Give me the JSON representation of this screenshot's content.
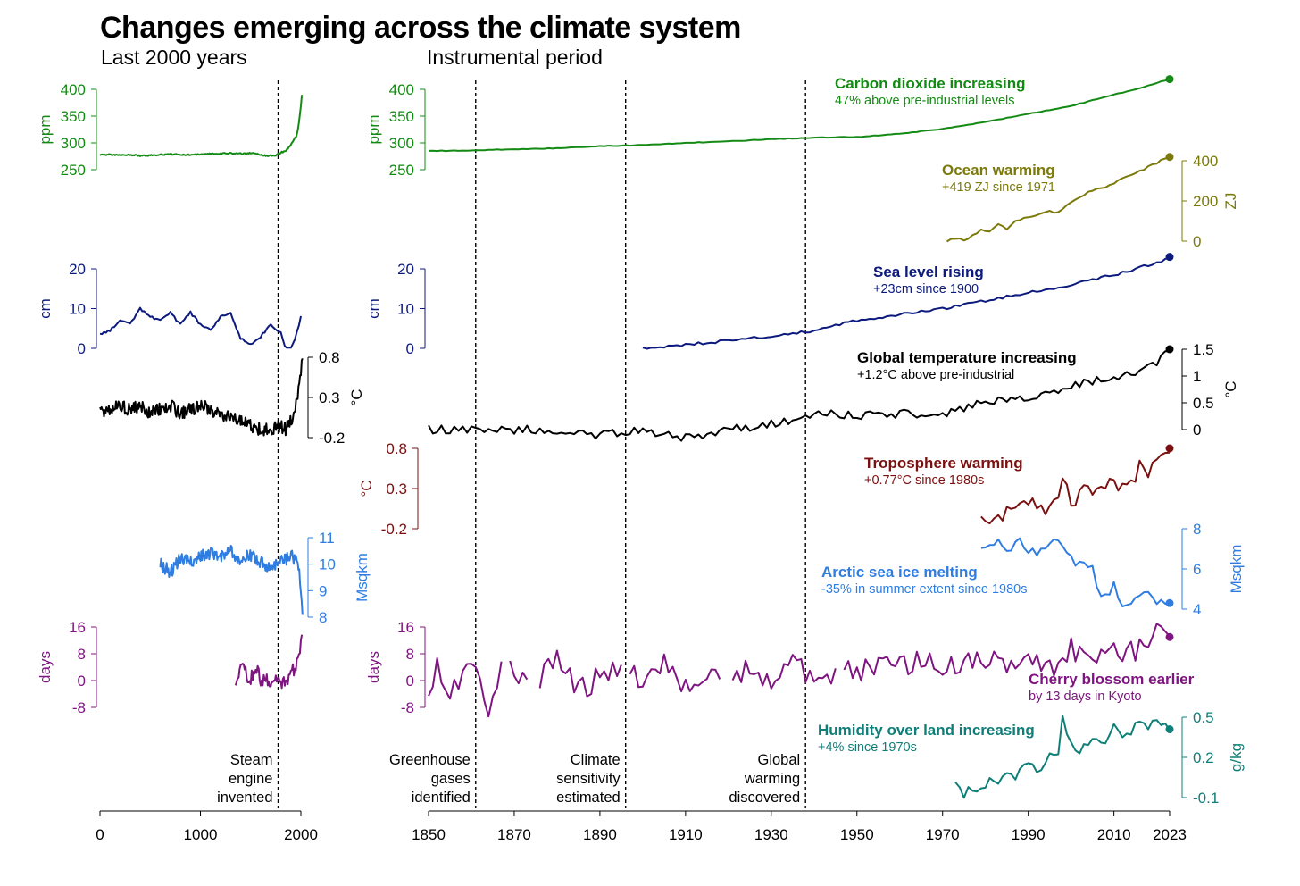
{
  "title": "Changes emerging across the climate system",
  "subtitle_left": "Last 2000 years",
  "subtitle_right": "Instrumental period",
  "colors": {
    "co2": "#138a13",
    "ocean": "#7b7a0a",
    "sea": "#0c1a7e",
    "temp": "#000000",
    "tropo": "#7a1010",
    "ice": "#2f7de0",
    "cherry": "#7f1580",
    "humid": "#0e7f78"
  },
  "events": [
    {
      "year": 1861,
      "lines": [
        "Greenhouse",
        "gases",
        "identified"
      ]
    },
    {
      "year": 1896,
      "lines": [
        "Climate",
        "sensitivity",
        "estimated"
      ]
    },
    {
      "year": 1938,
      "lines": [
        "Global",
        "warming",
        "discovered"
      ]
    }
  ],
  "steam_event": {
    "year": 1769,
    "lines": [
      "Steam",
      "engine",
      "invented"
    ]
  },
  "annotations": {
    "co2": {
      "title": "Carbon dioxide increasing",
      "sub": "47% above pre-industrial levels"
    },
    "ocean": {
      "title": "Ocean warming",
      "sub": "+419 ZJ since 1971"
    },
    "sea": {
      "title": "Sea level rising",
      "sub": "+23cm since 1900"
    },
    "temp": {
      "title": "Global temperature increasing",
      "sub": "+1.2°C above pre-industrial"
    },
    "tropo": {
      "title": "Troposphere warming",
      "sub": "+0.77°C since 1980s"
    },
    "ice": {
      "title": "Arctic sea ice melting",
      "sub": "-35% in summer extent since 1980s"
    },
    "cherry": {
      "title": "Cherry blossom earlier",
      "sub": "by 13 days in Kyoto"
    },
    "humid": {
      "title": "Humidity over land increasing",
      "sub": "+4% since 1970s"
    }
  },
  "axes_text": {
    "left_x": {
      "ticks": [
        0,
        1000,
        2000
      ],
      "labels": [
        "0",
        "1000",
        "2000"
      ]
    },
    "right_x": {
      "ticks": [
        1850,
        1870,
        1890,
        1910,
        1930,
        1950,
        1970,
        1990,
        2010,
        2023
      ],
      "labels": [
        "1850",
        "1870",
        "1890",
        "1910",
        "1930",
        "1950",
        "1970",
        "1990",
        "2010",
        "2023"
      ]
    }
  },
  "chart_data": [
    {
      "type": "line",
      "title": "Carbon dioxide increasing",
      "ylabel": "ppm",
      "ylim": [
        250,
        400
      ],
      "yticks": [
        "250",
        "300",
        "350",
        "400"
      ],
      "series": [
        {
          "period": "last_2000_years",
          "x": [
            0,
            100,
            200,
            300,
            400,
            500,
            600,
            700,
            800,
            900,
            1000,
            1100,
            1200,
            1300,
            1400,
            1500,
            1600,
            1650,
            1700,
            1750,
            1800,
            1850,
            1900,
            1925,
            1950,
            1960,
            1970,
            1980,
            1990,
            2000,
            2010,
            2019
          ],
          "y": [
            278,
            278,
            277,
            278,
            276,
            277,
            278,
            279,
            278,
            278,
            279,
            280,
            280,
            281,
            280,
            281,
            278,
            276,
            277,
            277,
            282,
            285,
            296,
            305,
            311,
            316,
            325,
            338,
            354,
            369,
            389,
            410
          ]
        },
        {
          "period": "instrumental",
          "x": [
            1850,
            1860,
            1870,
            1880,
            1890,
            1900,
            1910,
            1920,
            1930,
            1940,
            1950,
            1960,
            1970,
            1980,
            1990,
            2000,
            2010,
            2015,
            2020,
            2023
          ],
          "y": [
            285,
            286,
            288,
            290,
            294,
            296,
            300,
            303,
            307,
            310,
            311,
            317,
            326,
            339,
            354,
            369,
            390,
            400,
            412,
            419
          ]
        }
      ]
    },
    {
      "type": "line",
      "title": "Ocean warming",
      "ylabel": "ZJ",
      "ylim": [
        0,
        400
      ],
      "yticks": [
        "0",
        "200",
        "400"
      ],
      "series": [
        {
          "period": "instrumental",
          "x": [
            1971,
            1973,
            1975,
            1977,
            1979,
            1981,
            1983,
            1985,
            1987,
            1989,
            1991,
            1993,
            1995,
            1997,
            1999,
            2001,
            2003,
            2005,
            2007,
            2009,
            2011,
            2013,
            2015,
            2017,
            2019,
            2021,
            2023
          ],
          "y": [
            0,
            10,
            5,
            30,
            55,
            45,
            80,
            60,
            100,
            115,
            125,
            140,
            150,
            140,
            180,
            205,
            230,
            250,
            260,
            280,
            300,
            320,
            340,
            360,
            380,
            400,
            419
          ]
        }
      ]
    },
    {
      "type": "line",
      "title": "Sea level rising",
      "ylabel": "cm",
      "ylim": [
        0,
        20
      ],
      "yticks": [
        "0",
        "10",
        "20"
      ],
      "series": [
        {
          "period": "last_2000_years",
          "x": [
            0,
            100,
            200,
            300,
            400,
            500,
            600,
            700,
            800,
            900,
            1000,
            1100,
            1200,
            1300,
            1400,
            1500,
            1600,
            1700,
            1800,
            1850,
            1900,
            1950,
            2000,
            2019
          ],
          "y": [
            3.5,
            4.5,
            7,
            6,
            10,
            8,
            7,
            9,
            6,
            9,
            6,
            4.5,
            8,
            9,
            2.5,
            1,
            3,
            6,
            4,
            0,
            0,
            3,
            8,
            15
          ]
        },
        {
          "period": "instrumental",
          "x": [
            1900,
            1910,
            1920,
            1930,
            1940,
            1950,
            1960,
            1970,
            1980,
            1990,
            2000,
            2010,
            2020,
            2023
          ],
          "y": [
            0,
            0.8,
            2,
            3,
            4.5,
            7,
            8.5,
            10,
            12,
            14,
            16,
            18.5,
            21.5,
            23
          ]
        }
      ]
    },
    {
      "type": "line",
      "title": "Global temperature increasing",
      "ylabel": "°C",
      "left_ylim": [
        -0.2,
        0.8
      ],
      "left_yticks": [
        "-0.2",
        "0.3",
        "0.8"
      ],
      "right_ylim": [
        0,
        1.5
      ],
      "right_yticks": [
        "0",
        "0.5",
        "1",
        "1.5"
      ],
      "series": [
        {
          "period": "last_2000_years",
          "x": [
            0,
            100,
            200,
            300,
            400,
            500,
            600,
            700,
            800,
            900,
            1000,
            1100,
            1200,
            1300,
            1400,
            1500,
            1600,
            1700,
            1800,
            1850,
            1900,
            1950,
            1980,
            2000,
            2019
          ],
          "y": [
            0.1,
            0.15,
            0.2,
            0.15,
            0.2,
            0.1,
            0.15,
            0.2,
            0.1,
            0.15,
            0.2,
            0.15,
            0.1,
            0.05,
            0.0,
            -0.05,
            -0.1,
            -0.1,
            -0.05,
            -0.1,
            0.0,
            0.2,
            0.4,
            0.6,
            0.9
          ]
        },
        {
          "period": "instrumental",
          "x": [
            1850,
            1860,
            1870,
            1880,
            1890,
            1900,
            1910,
            1920,
            1930,
            1940,
            1950,
            1960,
            1970,
            1980,
            1990,
            2000,
            2010,
            2015,
            2020,
            2023
          ],
          "y": [
            0.0,
            0.0,
            0.0,
            0.0,
            -0.1,
            0.0,
            -0.15,
            0.0,
            0.1,
            0.3,
            0.25,
            0.3,
            0.3,
            0.5,
            0.6,
            0.8,
            1.0,
            1.05,
            1.25,
            1.45
          ]
        }
      ]
    },
    {
      "type": "line",
      "title": "Troposphere warming",
      "ylabel": "°C",
      "ylim": [
        -0.2,
        0.8
      ],
      "yticks": [
        "-0.2",
        "0.3",
        "0.8"
      ],
      "series": [
        {
          "period": "instrumental",
          "x": [
            1979,
            1982,
            1985,
            1988,
            1991,
            1994,
            1997,
            1998,
            2000,
            2003,
            2006,
            2009,
            2012,
            2015,
            2016,
            2018,
            2020,
            2023
          ],
          "y": [
            -0.05,
            -0.1,
            0.0,
            0.05,
            0.1,
            0.05,
            0.2,
            0.5,
            0.1,
            0.3,
            0.3,
            0.35,
            0.3,
            0.45,
            0.65,
            0.5,
            0.6,
            0.8
          ]
        }
      ]
    },
    {
      "type": "line",
      "title": "Arctic sea ice melting",
      "ylabel": "Msqkm",
      "left_ylim": [
        8,
        11
      ],
      "left_yticks": [
        "8",
        "9",
        "10",
        "11"
      ],
      "right_ylim": [
        4,
        8
      ],
      "right_yticks": [
        "4",
        "6",
        "8"
      ],
      "series": [
        {
          "period": "last_2000_years",
          "x": [
            600,
            700,
            800,
            900,
            1000,
            1100,
            1200,
            1300,
            1400,
            1500,
            1600,
            1700,
            1800,
            1850,
            1900,
            1950,
            1980,
            2000,
            2019
          ],
          "y": [
            10.0,
            9.7,
            10.2,
            10.1,
            10.3,
            10.4,
            10.3,
            10.5,
            10.2,
            10.3,
            10.1,
            9.9,
            10.1,
            10.2,
            10.4,
            10.1,
            9.8,
            9.0,
            8.0
          ]
        },
        {
          "period": "instrumental",
          "x": [
            1979,
            1982,
            1985,
            1988,
            1991,
            1994,
            1996,
            1999,
            2002,
            2005,
            2007,
            2010,
            2012,
            2015,
            2018,
            2020,
            2023
          ],
          "y": [
            7.2,
            7.4,
            7.0,
            7.3,
            6.8,
            7.0,
            7.5,
            6.6,
            6.2,
            5.9,
            4.6,
            5.1,
            3.9,
            4.8,
            4.9,
            4.3,
            4.3
          ]
        }
      ]
    },
    {
      "type": "line",
      "title": "Cherry blossom earlier",
      "ylabel": "days",
      "ylim": [
        -8,
        16
      ],
      "yticks": [
        "-8",
        "0",
        "8",
        "16"
      ],
      "series": [
        {
          "period": "last_2000_years",
          "x": [
            1350,
            1400,
            1450,
            1500,
            1550,
            1600,
            1650,
            1700,
            1750,
            1800,
            1850,
            1900,
            1950,
            1980,
            2000,
            2019
          ],
          "y": [
            -3,
            5,
            2,
            1,
            4,
            0,
            1,
            -2,
            2,
            0,
            -1,
            2,
            4,
            7,
            10,
            14
          ]
        },
        {
          "period": "instrumental",
          "x": [
            1850,
            1852,
            1855,
            1858,
            1861,
            1864,
            1867,
            1870,
            1875,
            1880,
            1885,
            1890,
            1895,
            1900,
            1905,
            1910,
            1915,
            1920,
            1925,
            1930,
            1935,
            1940,
            1945,
            1950,
            1955,
            1960,
            1965,
            1970,
            1975,
            1980,
            1985,
            1990,
            1995,
            2000,
            2005,
            2010,
            2015,
            2020,
            2023
          ],
          "y": [
            -2,
            5,
            -6,
            3,
            6,
            -8,
            4,
            2,
            -1,
            7,
            -3,
            1,
            3,
            0,
            5,
            -2,
            3,
            1,
            4,
            -1,
            6,
            0,
            3,
            2,
            5,
            4,
            7,
            3,
            5,
            6,
            4,
            9,
            3,
            10,
            6,
            8,
            9,
            14,
            13
          ]
        }
      ]
    },
    {
      "type": "line",
      "title": "Humidity over land increasing",
      "ylabel": "g/kg",
      "ylim": [
        -0.1,
        0.5
      ],
      "yticks": [
        "-0.1",
        "0.2",
        "0.5"
      ],
      "series": [
        {
          "period": "instrumental",
          "x": [
            1973,
            1975,
            1977,
            1979,
            1981,
            1983,
            1985,
            1987,
            1989,
            1991,
            1993,
            1995,
            1997,
            1998,
            2000,
            2002,
            2004,
            2006,
            2008,
            2010,
            2012,
            2014,
            2016,
            2018,
            2020,
            2023
          ],
          "y": [
            0.0,
            -0.08,
            -0.02,
            -0.05,
            0.05,
            0.02,
            0.1,
            0.05,
            0.12,
            0.15,
            0.08,
            0.2,
            0.25,
            0.5,
            0.3,
            0.25,
            0.3,
            0.35,
            0.28,
            0.45,
            0.32,
            0.38,
            0.48,
            0.42,
            0.5,
            0.41
          ]
        }
      ]
    }
  ]
}
